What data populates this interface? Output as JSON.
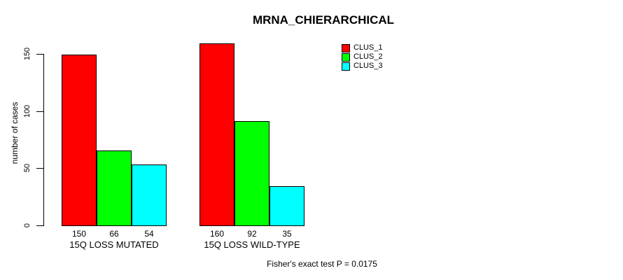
{
  "title": "MRNA_CHIERARCHICAL",
  "footer_note": "Fisher's exact test P = 0.0175",
  "chart_data": {
    "type": "bar",
    "title": "MRNA_CHIERARCHICAL",
    "xlabel": "",
    "ylabel": "number of cases",
    "yticks": [
      0,
      50,
      100,
      150
    ],
    "ylim": [
      0,
      165
    ],
    "grid": false,
    "legend_position": "top-right",
    "bar_border_color": "#000000",
    "value_labels_shown": true,
    "categories": [
      "15Q LOSS MUTATED",
      "15Q LOSS WILD-TYPE"
    ],
    "series": [
      {
        "name": "CLUS_1",
        "color": "#FF0000",
        "values": [
          150,
          160
        ]
      },
      {
        "name": "CLUS_2",
        "color": "#00FF00",
        "values": [
          66,
          92
        ]
      },
      {
        "name": "CLUS_3",
        "color": "#00FFFF",
        "values": [
          54,
          35
        ]
      }
    ],
    "annotation": "Fisher's exact test P = 0.0175"
  }
}
